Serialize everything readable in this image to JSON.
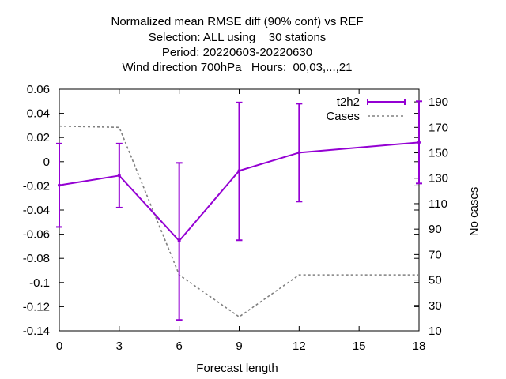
{
  "chart_data": {
    "type": "line",
    "title_lines": [
      "Normalized mean RMSE diff (90% conf) vs REF",
      "Selection: ALL using    30 stations",
      "Period: 20220603-20220630",
      "Wind direction 700hPa   Hours:  00,03,...,21"
    ],
    "xlabel": "Forecast length",
    "ylabel": "",
    "y2label": "No cases",
    "xlim": [
      0,
      18
    ],
    "ylim": [
      -0.14,
      0.06
    ],
    "y2lim": [
      10,
      200
    ],
    "xticks": [
      "0",
      "3",
      "6",
      "9",
      "12",
      "15",
      "18"
    ],
    "yticks": [
      "0.06",
      "0.04",
      "0.02",
      "0",
      "-0.02",
      "-0.04",
      "-0.06",
      "-0.08",
      "-0.1",
      "-0.12",
      "-0.14"
    ],
    "y2ticks": [
      "190",
      "170",
      "150",
      "130",
      "110",
      "90",
      "70",
      "50",
      "30",
      "10"
    ],
    "grid": false,
    "legend_position": "top-right",
    "series": [
      {
        "name": "t2h2",
        "color": "#9400d3",
        "x": [
          0,
          3,
          6,
          9,
          12,
          18
        ],
        "y": [
          -0.0195,
          -0.0115,
          -0.0655,
          -0.0075,
          0.0075,
          0.016
        ],
        "err_low": [
          -0.054,
          -0.038,
          -0.131,
          -0.065,
          -0.033,
          -0.018
        ],
        "err_high": [
          0.015,
          0.015,
          -0.001,
          0.049,
          0.048,
          0.05
        ]
      },
      {
        "name": "Cases",
        "color": "#808080",
        "axis": "y2",
        "x": [
          0,
          3,
          6,
          9,
          12,
          18
        ],
        "y": [
          171,
          170,
          54,
          21,
          54,
          54
        ]
      }
    ]
  }
}
